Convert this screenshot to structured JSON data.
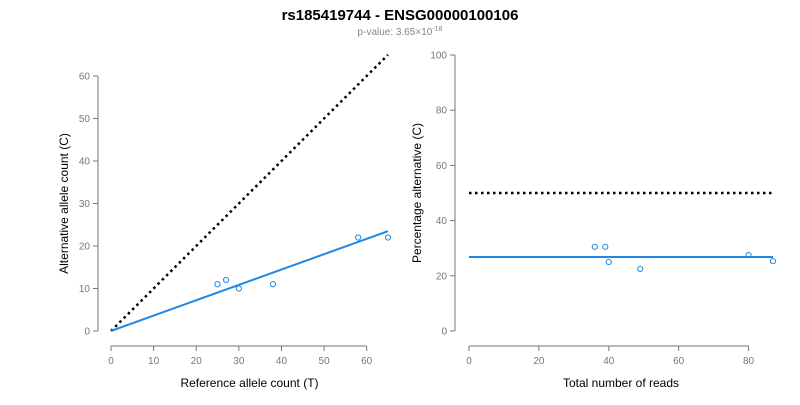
{
  "figure": {
    "title": "rs185419744 - ENSG00000100106",
    "subtitle_prefix": "p-value: 3.65×10",
    "subtitle_exponent": "-18"
  },
  "chart_data": [
    {
      "type": "scatter",
      "xlabel": "Reference allele count (T)",
      "ylabel": "Alternative allele count (C)",
      "xlim": [
        0,
        65
      ],
      "ylim": [
        0,
        60
      ],
      "xticks": [
        "0",
        "10",
        "20",
        "30",
        "40",
        "50",
        "60"
      ],
      "yticks": [
        "0",
        "10",
        "20",
        "30",
        "40",
        "50",
        "60"
      ],
      "points": {
        "x": [
          25,
          27,
          30,
          38,
          58,
          65
        ],
        "y": [
          11,
          12,
          10,
          11,
          22,
          22
        ]
      },
      "fit_line": {
        "from": [
          0,
          0
        ],
        "to": [
          65,
          23.5
        ],
        "color": "#1e88e5"
      },
      "reference_line": {
        "from": [
          0,
          0
        ],
        "to": [
          65,
          65
        ],
        "style": "dotted",
        "color": "#000000"
      },
      "point_color": "#1e88e5"
    },
    {
      "type": "scatter",
      "xlabel": "Total number of reads",
      "ylabel": "Percentage alternative (C)",
      "xlim": [
        0,
        87
      ],
      "ylim": [
        0,
        100
      ],
      "xticks": [
        "0",
        "20",
        "40",
        "60",
        "80"
      ],
      "yticks": [
        "0",
        "20",
        "40",
        "60",
        "80",
        "100"
      ],
      "points": {
        "x": [
          36,
          39,
          40,
          49,
          80,
          87
        ],
        "y": [
          30.5,
          30.5,
          25,
          22.5,
          27.5,
          25.3
        ]
      },
      "fit_line": {
        "from": [
          0,
          26.8
        ],
        "to": [
          87,
          26.8
        ],
        "color": "#1e88e5"
      },
      "reference_line": {
        "from": [
          0,
          50
        ],
        "to": [
          87,
          50
        ],
        "style": "dotted",
        "color": "#000000"
      },
      "point_color": "#1e88e5"
    }
  ]
}
